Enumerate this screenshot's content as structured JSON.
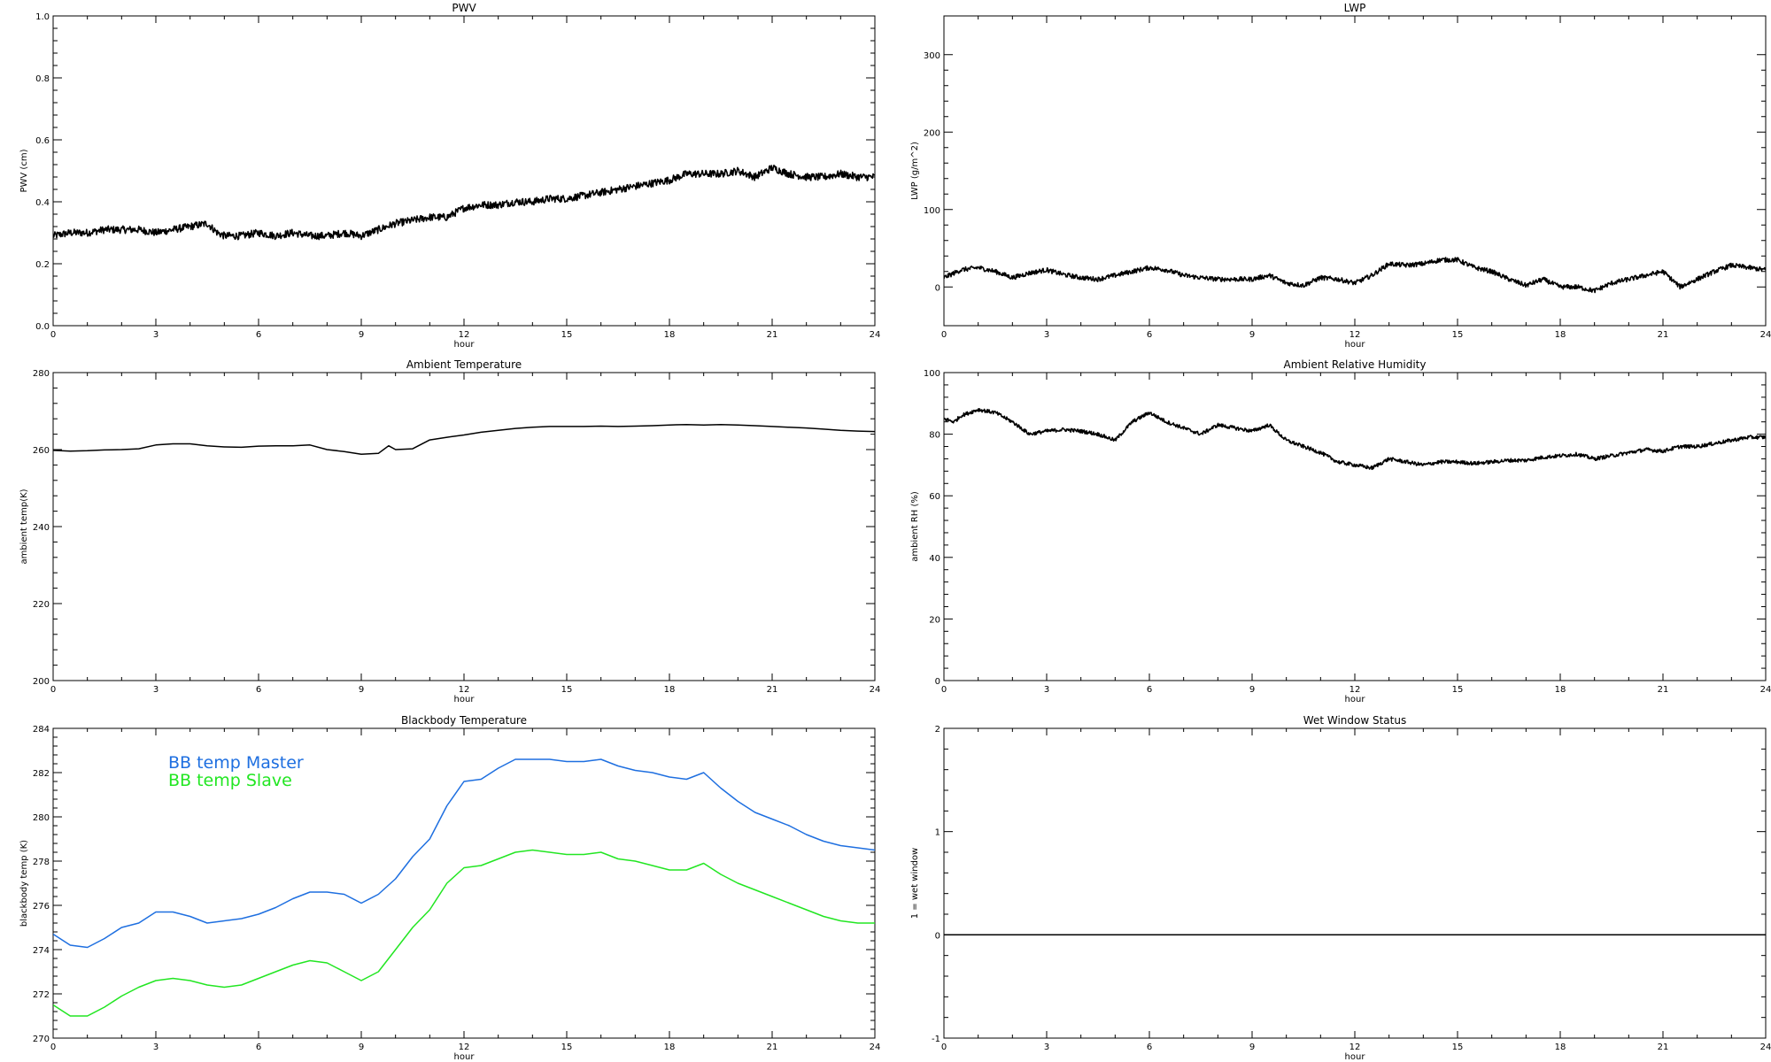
{
  "colors": {
    "black": "#000000",
    "master": "#1e6fe0",
    "slave": "#22e622"
  },
  "chart_data": [
    {
      "type": "line",
      "title": "PWV",
      "xlabel": "hour",
      "ylabel": "PWV (cm)",
      "xlim": [
        0,
        24
      ],
      "ylim": [
        0.0,
        1.0
      ],
      "xticks": [
        0,
        3,
        6,
        9,
        12,
        15,
        18,
        21,
        24
      ],
      "yticks": [
        "0.0",
        "0.2",
        "0.4",
        "0.6",
        "0.8",
        "1.0"
      ],
      "series": [
        {
          "color": "#000000",
          "noise": 0.012,
          "x": [
            0,
            0.5,
            1,
            1.5,
            2,
            2.5,
            3,
            3.5,
            4,
            4.5,
            4.8,
            5,
            5.5,
            6,
            6.5,
            7,
            7.5,
            8,
            8.5,
            9,
            9.5,
            10,
            10.5,
            11,
            11.5,
            12,
            12.5,
            13,
            13.5,
            14,
            14.5,
            15,
            15.5,
            16,
            16.5,
            17,
            17.5,
            18,
            18.5,
            19,
            19.5,
            20,
            20.5,
            21,
            21.5,
            22,
            22.5,
            23,
            23.5,
            24
          ],
          "y": [
            0.29,
            0.3,
            0.3,
            0.31,
            0.31,
            0.31,
            0.3,
            0.31,
            0.32,
            0.33,
            0.3,
            0.29,
            0.29,
            0.3,
            0.29,
            0.3,
            0.29,
            0.29,
            0.3,
            0.29,
            0.31,
            0.33,
            0.34,
            0.35,
            0.35,
            0.38,
            0.39,
            0.39,
            0.4,
            0.4,
            0.41,
            0.41,
            0.42,
            0.43,
            0.44,
            0.45,
            0.46,
            0.47,
            0.49,
            0.49,
            0.49,
            0.5,
            0.48,
            0.51,
            0.49,
            0.48,
            0.48,
            0.49,
            0.48,
            0.48
          ]
        }
      ]
    },
    {
      "type": "line",
      "title": "LWP",
      "xlabel": "hour",
      "ylabel": "LWP (g/m^2)",
      "xlim": [
        0,
        24
      ],
      "ylim": [
        -50,
        350
      ],
      "xticks": [
        0,
        3,
        6,
        9,
        12,
        15,
        18,
        21,
        24
      ],
      "yticks": [
        "0",
        "100",
        "200",
        "300"
      ],
      "series": [
        {
          "color": "#000000",
          "noise": 3,
          "x": [
            0,
            0.5,
            1,
            1.5,
            2,
            2.5,
            3,
            3.5,
            4,
            4.5,
            5,
            5.5,
            6,
            6.5,
            7,
            7.5,
            8,
            8.5,
            9,
            9.5,
            10,
            10.5,
            11,
            11.5,
            12,
            12.5,
            13,
            13.5,
            14,
            14.5,
            15,
            15.5,
            16,
            16.5,
            17,
            17.5,
            18,
            18.5,
            19,
            19.5,
            20,
            20.5,
            21,
            21.5,
            22,
            22.5,
            23,
            23.5,
            24
          ],
          "y": [
            12,
            22,
            25,
            20,
            12,
            18,
            22,
            16,
            12,
            10,
            15,
            20,
            25,
            22,
            15,
            12,
            10,
            10,
            10,
            15,
            5,
            2,
            12,
            10,
            5,
            15,
            30,
            28,
            30,
            35,
            35,
            25,
            20,
            10,
            2,
            10,
            0,
            0,
            -5,
            5,
            10,
            15,
            20,
            0,
            10,
            20,
            28,
            25,
            22
          ]
        }
      ]
    },
    {
      "type": "line",
      "title": "Ambient Temperature",
      "xlabel": "hour",
      "ylabel": "ambient temp(K)",
      "xlim": [
        0,
        24
      ],
      "ylim": [
        200,
        280
      ],
      "xticks": [
        0,
        3,
        6,
        9,
        12,
        15,
        18,
        21,
        24
      ],
      "yticks": [
        "200",
        "220",
        "240",
        "260",
        "280"
      ],
      "series": [
        {
          "color": "#000000",
          "noise": 0,
          "x": [
            0,
            0.5,
            1,
            1.5,
            2,
            2.5,
            3,
            3.5,
            4,
            4.5,
            5,
            5.5,
            6,
            6.5,
            7,
            7.5,
            8,
            8.5,
            9,
            9.5,
            9.8,
            10,
            10.5,
            11,
            11.5,
            12,
            12.5,
            13,
            13.5,
            14,
            14.5,
            15,
            15.5,
            16,
            16.5,
            17,
            17.5,
            18,
            18.5,
            19,
            19.5,
            20,
            20.5,
            21,
            21.5,
            22,
            22.5,
            23,
            23.5,
            24
          ],
          "y": [
            259.8,
            259.6,
            259.7,
            259.9,
            260.0,
            260.2,
            261.2,
            261.5,
            261.5,
            261.0,
            260.7,
            260.6,
            260.9,
            261.0,
            261.0,
            261.2,
            260.0,
            259.5,
            258.8,
            259.0,
            261.0,
            260.0,
            260.2,
            262.5,
            263.2,
            263.8,
            264.5,
            265.0,
            265.5,
            265.8,
            266.0,
            266.0,
            266.0,
            266.1,
            266.0,
            266.1,
            266.2,
            266.4,
            266.5,
            266.4,
            266.5,
            266.4,
            266.2,
            266.0,
            265.8,
            265.6,
            265.3,
            265.0,
            264.8,
            264.7
          ]
        }
      ]
    },
    {
      "type": "line",
      "title": "Ambient Relative Humidity",
      "xlabel": "hour",
      "ylabel": "ambient RH (%)",
      "xlim": [
        0,
        24
      ],
      "ylim": [
        0,
        100
      ],
      "xticks": [
        0,
        3,
        6,
        9,
        12,
        15,
        18,
        21,
        24
      ],
      "yticks": [
        "0",
        "20",
        "40",
        "60",
        "80",
        "100"
      ],
      "series": [
        {
          "color": "#000000",
          "noise": 0.6,
          "x": [
            0,
            0.3,
            0.5,
            1,
            1.5,
            2,
            2.5,
            3,
            3.5,
            4,
            4.5,
            5,
            5.5,
            6,
            6.5,
            7,
            7.5,
            8,
            8.5,
            9,
            9.5,
            9.8,
            10,
            10.5,
            11,
            11.5,
            12,
            12.5,
            13,
            13.5,
            14,
            14.5,
            15,
            15.5,
            16,
            16.5,
            17,
            17.5,
            18,
            18.5,
            19,
            19.5,
            20,
            20.5,
            21,
            21.5,
            22,
            22.5,
            23,
            23.5,
            24
          ],
          "y": [
            85,
            84,
            86,
            88,
            87,
            84,
            80,
            81,
            81.5,
            81,
            80,
            78,
            84,
            87,
            84,
            82,
            80,
            83,
            82,
            81,
            83,
            80,
            78,
            76,
            74,
            71,
            70,
            69,
            72,
            71,
            70,
            71,
            71,
            70.5,
            71,
            71.5,
            71.5,
            72.5,
            73,
            73.5,
            72,
            73,
            74,
            75,
            74.5,
            76,
            76,
            77,
            78,
            79,
            79
          ]
        }
      ]
    },
    {
      "type": "line",
      "title": "Blackbody Temperature",
      "xlabel": "hour",
      "ylabel": "blackbody temp (K)",
      "xlim": [
        0,
        24
      ],
      "ylim": [
        270,
        284
      ],
      "xticks": [
        0,
        3,
        6,
        9,
        12,
        15,
        18,
        21,
        24
      ],
      "yticks": [
        "270",
        "272",
        "274",
        "276",
        "278",
        "280",
        "282",
        "284"
      ],
      "legend": "top-left",
      "series": [
        {
          "name": "BB temp Master",
          "color": "#1e6fe0",
          "noise": 0,
          "x": [
            0,
            0.5,
            1,
            1.5,
            2,
            2.5,
            3,
            3.5,
            4,
            4.5,
            5,
            5.5,
            6,
            6.5,
            7,
            7.5,
            8,
            8.5,
            9,
            9.5,
            10,
            10.5,
            11,
            11.5,
            12,
            12.5,
            13,
            13.5,
            14,
            14.5,
            15,
            15.5,
            16,
            16.5,
            17,
            17.5,
            18,
            18.5,
            19,
            19.5,
            20,
            20.5,
            21,
            21.5,
            22,
            22.5,
            23,
            23.5,
            24
          ],
          "y": [
            274.7,
            274.2,
            274.1,
            274.5,
            275.0,
            275.2,
            275.7,
            275.7,
            275.5,
            275.2,
            275.3,
            275.4,
            275.6,
            275.9,
            276.3,
            276.6,
            276.6,
            276.5,
            276.1,
            276.5,
            277.2,
            278.2,
            279.0,
            280.5,
            281.6,
            281.7,
            282.2,
            282.6,
            282.6,
            282.6,
            282.5,
            282.5,
            282.6,
            282.3,
            282.1,
            282.0,
            281.8,
            281.7,
            282.0,
            281.3,
            280.7,
            280.2,
            279.9,
            279.6,
            279.2,
            278.9,
            278.7,
            278.6,
            278.5
          ]
        },
        {
          "name": "BB temp Slave",
          "color": "#22e622",
          "noise": 0,
          "x": [
            0,
            0.5,
            1,
            1.5,
            2,
            2.5,
            3,
            3.5,
            4,
            4.5,
            5,
            5.5,
            6,
            6.5,
            7,
            7.5,
            8,
            8.5,
            9,
            9.5,
            10,
            10.5,
            11,
            11.5,
            12,
            12.5,
            13,
            13.5,
            14,
            14.5,
            15,
            15.5,
            16,
            16.5,
            17,
            17.5,
            18,
            18.5,
            19,
            19.5,
            20,
            20.5,
            21,
            21.5,
            22,
            22.5,
            23,
            23.5,
            24
          ],
          "y": [
            271.5,
            271.0,
            271.0,
            271.4,
            271.9,
            272.3,
            272.6,
            272.7,
            272.6,
            272.4,
            272.3,
            272.4,
            272.7,
            273.0,
            273.3,
            273.5,
            273.4,
            273.0,
            272.6,
            273.0,
            274.0,
            275.0,
            275.8,
            277.0,
            277.7,
            277.8,
            278.1,
            278.4,
            278.5,
            278.4,
            278.3,
            278.3,
            278.4,
            278.1,
            278.0,
            277.8,
            277.6,
            277.6,
            277.9,
            277.4,
            277.0,
            276.7,
            276.4,
            276.1,
            275.8,
            275.5,
            275.3,
            275.2,
            275.2
          ]
        }
      ]
    },
    {
      "type": "line",
      "title": "Wet Window Status",
      "xlabel": "hour",
      "ylabel": "1 = wet window",
      "xlim": [
        0,
        24
      ],
      "ylim": [
        -1,
        2
      ],
      "xticks": [
        0,
        3,
        6,
        9,
        12,
        15,
        18,
        21,
        24
      ],
      "yticks": [
        "-1",
        "0",
        "1",
        "2"
      ],
      "series": [
        {
          "color": "#000000",
          "noise": 0,
          "x": [
            0,
            24
          ],
          "y": [
            0,
            0
          ]
        }
      ]
    }
  ]
}
